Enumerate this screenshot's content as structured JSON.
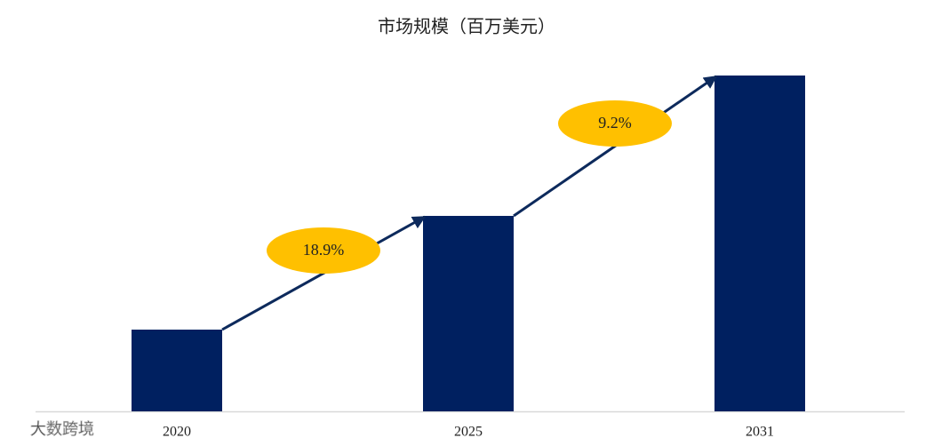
{
  "chart_data": {
    "type": "bar",
    "title": "市场规模（百万美元）",
    "categories": [
      "2020",
      "2025",
      "2031"
    ],
    "values": [
      92,
      220,
      378
    ],
    "color": "#002060",
    "growth_labels": [
      "18.9%",
      "9.2%"
    ],
    "growth_color": "#ffc000",
    "watermark": "大数跨境"
  }
}
